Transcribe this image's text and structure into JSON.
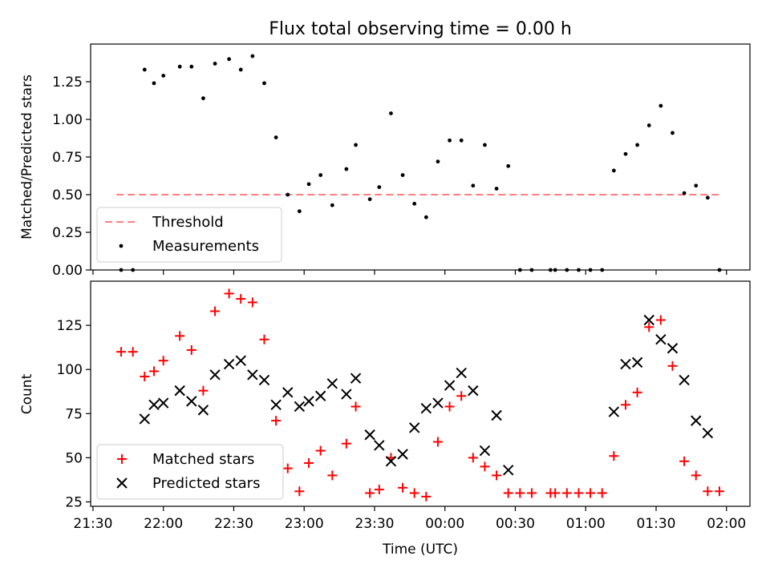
{
  "chart_data": [
    {
      "type": "scatter",
      "title": "Flux total observing time = 0.00 h",
      "xlabel": "",
      "ylabel": "Matched/Predicted stars",
      "ylim": [
        0,
        1.5
      ],
      "yticks": [
        "0.00",
        "0.25",
        "0.50",
        "0.75",
        "1.00",
        "1.25"
      ],
      "ytick_values": [
        0,
        0.25,
        0.5,
        0.75,
        1.0,
        1.25
      ],
      "legend_position": "bottom-left",
      "threshold": {
        "name": "Threshold",
        "value": 0.5,
        "x_start": "21:40",
        "x_end": "01:58",
        "color": "#ff7f7f"
      },
      "series": [
        {
          "name": "Measurements",
          "color": "#000000",
          "points": [
            [
              "21:42",
              0.0
            ],
            [
              "21:47",
              0.0
            ],
            [
              "21:52",
              1.33
            ],
            [
              "21:56",
              1.24
            ],
            [
              "22:00",
              1.29
            ],
            [
              "22:07",
              1.35
            ],
            [
              "22:12",
              1.35
            ],
            [
              "22:17",
              1.14
            ],
            [
              "22:22",
              1.37
            ],
            [
              "22:28",
              1.4
            ],
            [
              "22:33",
              1.33
            ],
            [
              "22:38",
              1.42
            ],
            [
              "22:43",
              1.24
            ],
            [
              "22:48",
              0.88
            ],
            [
              "22:53",
              0.5
            ],
            [
              "22:58",
              0.39
            ],
            [
              "23:02",
              0.57
            ],
            [
              "23:07",
              0.63
            ],
            [
              "23:12",
              0.43
            ],
            [
              "23:18",
              0.67
            ],
            [
              "23:22",
              0.83
            ],
            [
              "23:28",
              0.47
            ],
            [
              "23:32",
              0.55
            ],
            [
              "23:37",
              1.04
            ],
            [
              "23:42",
              0.63
            ],
            [
              "23:47",
              0.44
            ],
            [
              "23:52",
              0.35
            ],
            [
              "23:57",
              0.72
            ],
            [
              "00:02",
              0.86
            ],
            [
              "00:07",
              0.86
            ],
            [
              "00:12",
              0.56
            ],
            [
              "00:17",
              0.83
            ],
            [
              "00:22",
              0.54
            ],
            [
              "00:27",
              0.69
            ],
            [
              "00:32",
              0.0
            ],
            [
              "00:37",
              0.0
            ],
            [
              "00:45",
              0.0
            ],
            [
              "00:47",
              0.0
            ],
            [
              "00:52",
              0.0
            ],
            [
              "00:57",
              0.0
            ],
            [
              "01:02",
              0.0
            ],
            [
              "01:07",
              0.0
            ],
            [
              "01:12",
              0.66
            ],
            [
              "01:17",
              0.77
            ],
            [
              "01:22",
              0.83
            ],
            [
              "01:27",
              0.96
            ],
            [
              "01:32",
              1.09
            ],
            [
              "01:37",
              0.91
            ],
            [
              "01:42",
              0.51
            ],
            [
              "01:47",
              0.56
            ],
            [
              "01:52",
              0.48
            ],
            [
              "01:57",
              0.0
            ]
          ]
        }
      ]
    },
    {
      "type": "scatter",
      "title": "",
      "xlabel": "Time (UTC)",
      "ylabel": "Count",
      "ylim": [
        22.5,
        150
      ],
      "yticks": [
        "25",
        "50",
        "75",
        "100",
        "125"
      ],
      "ytick_values": [
        25,
        50,
        75,
        100,
        125
      ],
      "xlim": [
        "21:29",
        "02:10"
      ],
      "xticks": [
        "21:30",
        "22:00",
        "22:30",
        "23:00",
        "23:30",
        "00:00",
        "00:30",
        "01:00",
        "01:30",
        "02:00"
      ],
      "legend_position": "bottom-left",
      "series": [
        {
          "name": "Matched stars",
          "marker": "+",
          "color": "#ff0000",
          "points": [
            [
              "21:42",
              110
            ],
            [
              "21:47",
              110
            ],
            [
              "21:52",
              96
            ],
            [
              "21:56",
              99
            ],
            [
              "22:00",
              105
            ],
            [
              "22:07",
              119
            ],
            [
              "22:12",
              111
            ],
            [
              "22:17",
              88
            ],
            [
              "22:22",
              133
            ],
            [
              "22:28",
              143
            ],
            [
              "22:33",
              140
            ],
            [
              "22:38",
              138
            ],
            [
              "22:43",
              117
            ],
            [
              "22:48",
              71
            ],
            [
              "22:53",
              44
            ],
            [
              "22:58",
              31
            ],
            [
              "23:02",
              47
            ],
            [
              "23:07",
              54
            ],
            [
              "23:12",
              40
            ],
            [
              "23:18",
              58
            ],
            [
              "23:22",
              79
            ],
            [
              "23:28",
              30
            ],
            [
              "23:32",
              32
            ],
            [
              "23:37",
              50
            ],
            [
              "23:42",
              33
            ],
            [
              "23:47",
              30
            ],
            [
              "23:52",
              28
            ],
            [
              "23:57",
              59
            ],
            [
              "00:02",
              79
            ],
            [
              "00:07",
              85
            ],
            [
              "00:12",
              50
            ],
            [
              "00:17",
              45
            ],
            [
              "00:22",
              40
            ],
            [
              "00:27",
              30
            ],
            [
              "00:32",
              30
            ],
            [
              "00:37",
              30
            ],
            [
              "00:45",
              30
            ],
            [
              "00:47",
              30
            ],
            [
              "00:52",
              30
            ],
            [
              "00:57",
              30
            ],
            [
              "01:02",
              30
            ],
            [
              "01:07",
              30
            ],
            [
              "01:12",
              51
            ],
            [
              "01:17",
              80
            ],
            [
              "01:22",
              87
            ],
            [
              "01:27",
              124
            ],
            [
              "01:32",
              128
            ],
            [
              "01:37",
              102
            ],
            [
              "01:42",
              48
            ],
            [
              "01:47",
              40
            ],
            [
              "01:52",
              31
            ],
            [
              "01:57",
              31
            ]
          ]
        },
        {
          "name": "Predicted stars",
          "marker": "x",
          "color": "#000000",
          "points": [
            [
              "21:52",
              72
            ],
            [
              "21:56",
              80
            ],
            [
              "22:00",
              81
            ],
            [
              "22:07",
              88
            ],
            [
              "22:12",
              82
            ],
            [
              "22:17",
              77
            ],
            [
              "22:22",
              97
            ],
            [
              "22:28",
              103
            ],
            [
              "22:33",
              105
            ],
            [
              "22:38",
              97
            ],
            [
              "22:43",
              94
            ],
            [
              "22:48",
              80
            ],
            [
              "22:53",
              87
            ],
            [
              "22:58",
              79
            ],
            [
              "23:02",
              82
            ],
            [
              "23:07",
              85
            ],
            [
              "23:12",
              92
            ],
            [
              "23:18",
              86
            ],
            [
              "23:22",
              95
            ],
            [
              "23:28",
              63
            ],
            [
              "23:32",
              57
            ],
            [
              "23:37",
              48
            ],
            [
              "23:42",
              52
            ],
            [
              "23:47",
              67
            ],
            [
              "23:52",
              78
            ],
            [
              "23:57",
              81
            ],
            [
              "00:02",
              91
            ],
            [
              "00:07",
              98
            ],
            [
              "00:12",
              88
            ],
            [
              "00:17",
              54
            ],
            [
              "00:22",
              74
            ],
            [
              "00:27",
              43
            ],
            [
              "01:12",
              76
            ],
            [
              "01:17",
              103
            ],
            [
              "01:22",
              104
            ],
            [
              "01:27",
              128
            ],
            [
              "01:32",
              117
            ],
            [
              "01:37",
              112
            ],
            [
              "01:42",
              94
            ],
            [
              "01:47",
              71
            ],
            [
              "01:52",
              64
            ]
          ]
        }
      ]
    }
  ]
}
